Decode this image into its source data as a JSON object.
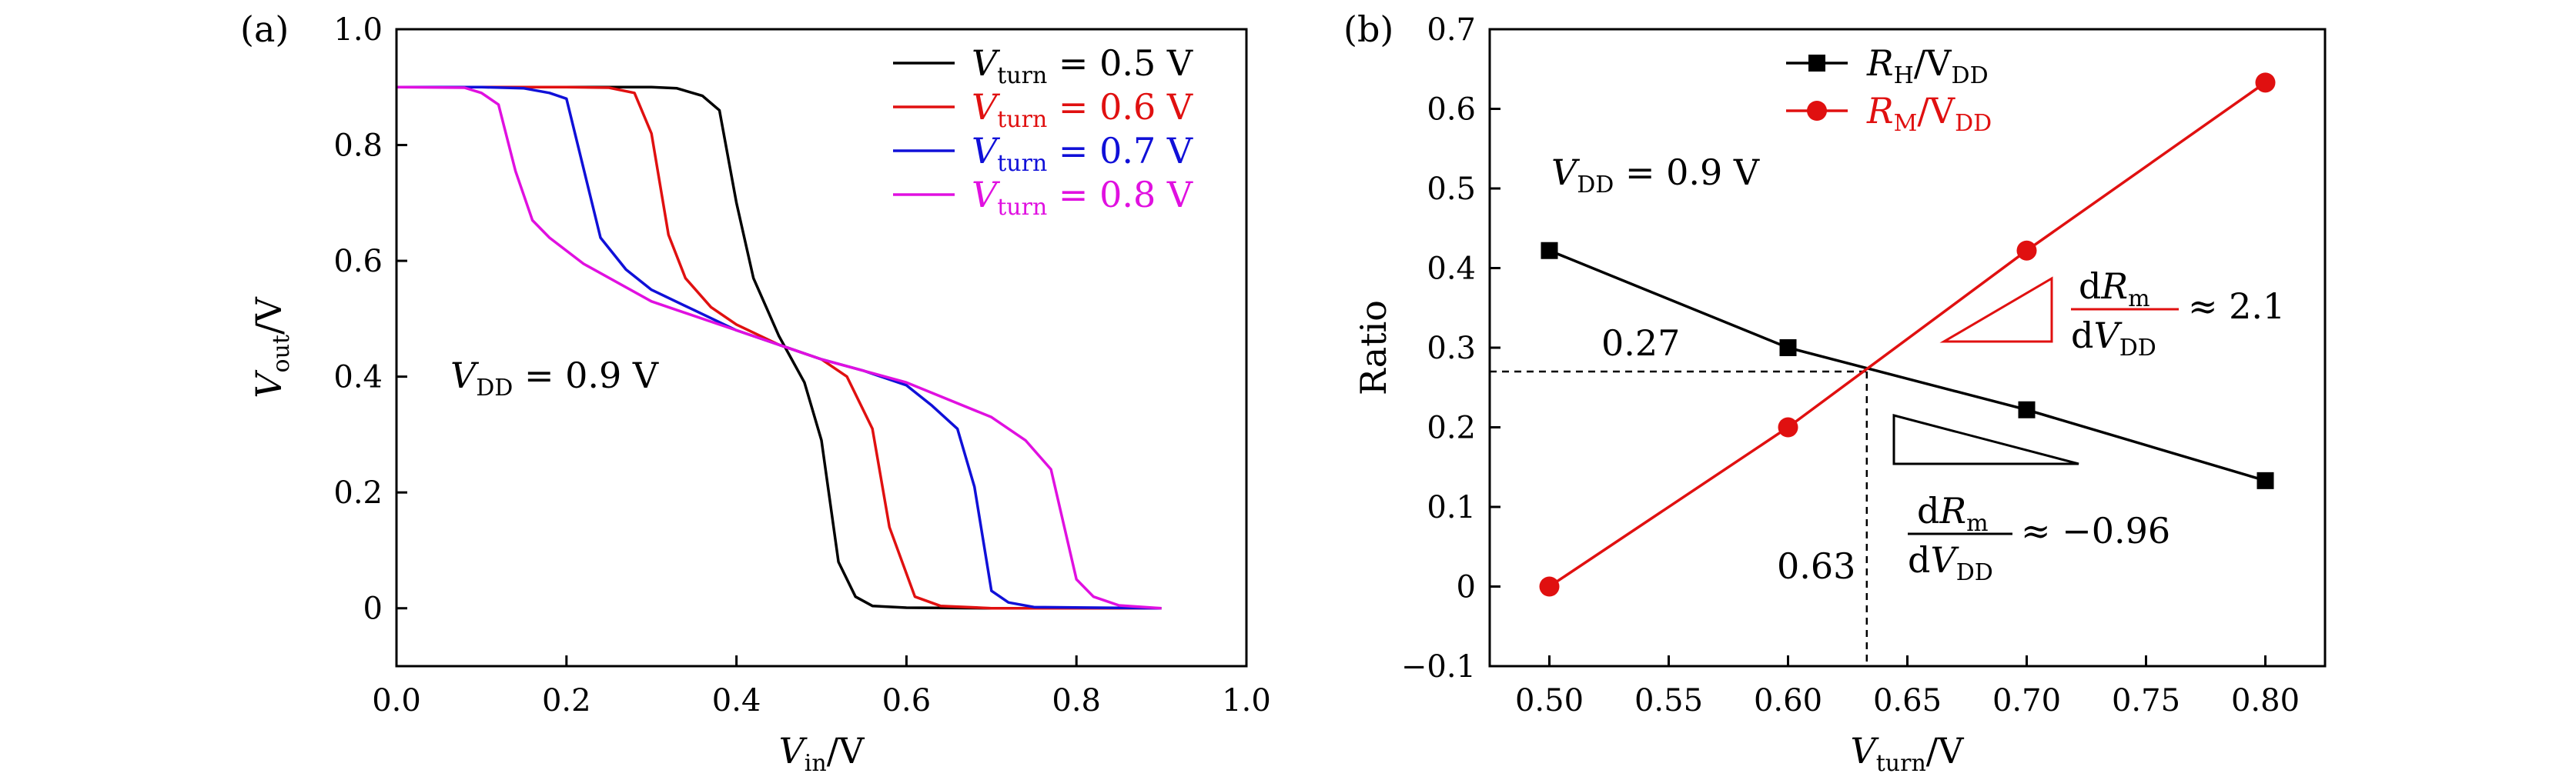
{
  "chart_data": [
    {
      "panel_label": "(a)",
      "type": "line",
      "xlabel": {
        "var": "V",
        "sub": "in",
        "unit": "/V"
      },
      "ylabel": {
        "var": "V",
        "sub": "out",
        "unit": "/V"
      },
      "xlim": [
        0,
        1.0
      ],
      "ylim": [
        -0.1,
        1.0
      ],
      "xticks": [
        "0.0",
        "0.2",
        "0.4",
        "0.6",
        "0.8",
        "1.0"
      ],
      "yticks": [
        "0",
        "0.2",
        "0.4",
        "0.6",
        "0.8",
        "1.0"
      ],
      "xtick_values": [
        0,
        0.2,
        0.4,
        0.6,
        0.8,
        1.0
      ],
      "ytick_values": [
        0,
        0.2,
        0.4,
        0.6,
        0.8,
        1.0
      ],
      "legend_position": "top-right",
      "annotation": {
        "var": "V",
        "sub": "DD",
        "rest": " = 0.9 V",
        "x": 0.07,
        "y": 0.4
      },
      "series": [
        {
          "name": {
            "var": "V",
            "sub": "turn",
            "rest": " = 0.5 V"
          },
          "color": "#000000",
          "x": [
            0,
            0.1,
            0.2,
            0.3,
            0.33,
            0.36,
            0.38,
            0.4,
            0.42,
            0.45,
            0.48,
            0.5,
            0.52,
            0.54,
            0.56,
            0.6,
            0.7,
            0.9
          ],
          "y": [
            0.9,
            0.9,
            0.9,
            0.9,
            0.898,
            0.885,
            0.86,
            0.7,
            0.57,
            0.47,
            0.39,
            0.29,
            0.08,
            0.02,
            0.004,
            0.001,
            0.0,
            0.0
          ]
        },
        {
          "name": {
            "var": "V",
            "sub": "turn",
            "rest": " = 0.6 V"
          },
          "color": "#e01010",
          "x": [
            0,
            0.1,
            0.2,
            0.25,
            0.28,
            0.3,
            0.32,
            0.34,
            0.37,
            0.4,
            0.45,
            0.5,
            0.53,
            0.56,
            0.58,
            0.61,
            0.64,
            0.7,
            0.9
          ],
          "y": [
            0.9,
            0.9,
            0.9,
            0.899,
            0.89,
            0.82,
            0.645,
            0.57,
            0.52,
            0.49,
            0.455,
            0.43,
            0.4,
            0.31,
            0.14,
            0.02,
            0.004,
            0.0,
            0.0
          ]
        },
        {
          "name": {
            "var": "V",
            "sub": "turn",
            "rest": " = 0.7 V"
          },
          "color": "#1010d8",
          "x": [
            0,
            0.1,
            0.15,
            0.18,
            0.2,
            0.22,
            0.24,
            0.27,
            0.3,
            0.35,
            0.4,
            0.45,
            0.5,
            0.55,
            0.6,
            0.63,
            0.66,
            0.68,
            0.7,
            0.72,
            0.75,
            0.9
          ],
          "y": [
            0.9,
            0.9,
            0.898,
            0.89,
            0.88,
            0.76,
            0.64,
            0.585,
            0.55,
            0.515,
            0.48,
            0.455,
            0.43,
            0.41,
            0.385,
            0.35,
            0.31,
            0.21,
            0.03,
            0.01,
            0.002,
            0.0
          ]
        },
        {
          "name": {
            "var": "V",
            "sub": "turn",
            "rest": " = 0.8 V"
          },
          "color": "#e010e0",
          "x": [
            0,
            0.08,
            0.1,
            0.12,
            0.14,
            0.16,
            0.18,
            0.22,
            0.3,
            0.4,
            0.45,
            0.5,
            0.6,
            0.7,
            0.74,
            0.77,
            0.8,
            0.82,
            0.85,
            0.9
          ],
          "y": [
            0.9,
            0.899,
            0.89,
            0.87,
            0.755,
            0.67,
            0.64,
            0.595,
            0.53,
            0.48,
            0.455,
            0.43,
            0.39,
            0.33,
            0.29,
            0.24,
            0.05,
            0.02,
            0.005,
            0.0
          ]
        }
      ]
    },
    {
      "panel_label": "(b)",
      "type": "line",
      "xlabel": {
        "var": "V",
        "sub": "turn",
        "unit": "/V"
      },
      "ylabel": "Ratio",
      "xlim": [
        0.475,
        0.825
      ],
      "ylim": [
        -0.1,
        0.7
      ],
      "xticks": [
        "0.50",
        "0.55",
        "0.60",
        "0.65",
        "0.70",
        "0.75",
        "0.80"
      ],
      "yticks": [
        "−0.1",
        "0",
        "0.1",
        "0.2",
        "0.3",
        "0.4",
        "0.5",
        "0.6",
        "0.7"
      ],
      "xtick_values": [
        0.5,
        0.55,
        0.6,
        0.65,
        0.7,
        0.75,
        0.8
      ],
      "ytick_values": [
        -0.1,
        0,
        0.1,
        0.2,
        0.3,
        0.4,
        0.5,
        0.6,
        0.7
      ],
      "legend_position": "top-left",
      "annotation": {
        "var": "V",
        "sub": "DD",
        "rest": " = 0.9 V"
      },
      "series": [
        {
          "name": {
            "var": "R",
            "sub": "H",
            "rest": "/V",
            "sub2": "DD"
          },
          "color": "#000000",
          "marker": "square",
          "x": [
            0.5,
            0.6,
            0.7,
            0.8
          ],
          "y": [
            0.422,
            0.3,
            0.222,
            0.133
          ]
        },
        {
          "name": {
            "var": "R",
            "sub": "M",
            "rest": "/V",
            "sub2": "DD"
          },
          "color": "#e01010",
          "marker": "circle",
          "x": [
            0.5,
            0.6,
            0.7,
            0.8
          ],
          "y": [
            0.0,
            0.2,
            0.422,
            0.633
          ]
        }
      ],
      "crossing": {
        "x": 0.633,
        "y": 0.27,
        "x_label": "0.63",
        "y_label": "0.27"
      },
      "slope_annotations": [
        {
          "color": "#e01010",
          "value": "≈ 2.1"
        },
        {
          "color": "#000000",
          "value": "≈ −0.96"
        }
      ]
    }
  ]
}
